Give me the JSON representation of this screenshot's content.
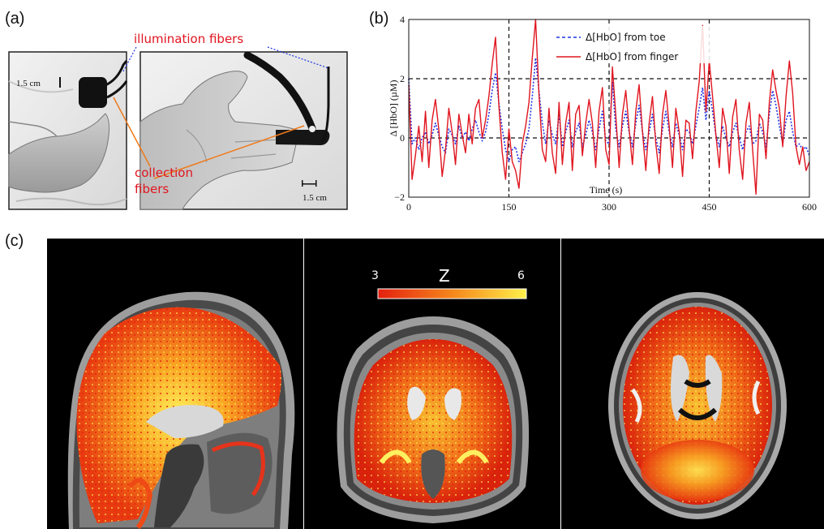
{
  "panels": {
    "a": {
      "label": "(a)"
    },
    "b": {
      "label": "(b)"
    },
    "c": {
      "label": "(c)"
    }
  },
  "photo": {
    "illumination_label": "illumination fibers",
    "collection_label_line1": "collection",
    "collection_label_line2": "fibers",
    "foot_scale": "1.5 cm",
    "hand_scale": "1.5 cm"
  },
  "colorbar": {
    "label": "Z",
    "min_label": "3",
    "max_label": "6",
    "min": 3,
    "max": 6
  },
  "chart_data": {
    "type": "line",
    "xlabel": "Time (s)",
    "ylabel": "Δ [HbO] (µM)",
    "xlim": [
      0,
      600
    ],
    "ylim": [
      -2,
      4
    ],
    "xticks": [
      "0",
      "150",
      "300",
      "450",
      "600"
    ],
    "yticks": [
      "−2",
      "0",
      "2",
      "4"
    ],
    "grid": "dashed lines at x = 150, 300, 450 and y = 0, 2",
    "legend_position": "top-right",
    "series": [
      {
        "name": "Δ[HbO] from toe",
        "color": "#1f35e6",
        "style": "dashed",
        "x": [
          0,
          5,
          10,
          15,
          20,
          25,
          30,
          35,
          40,
          45,
          50,
          55,
          60,
          65,
          70,
          75,
          80,
          85,
          90,
          95,
          100,
          105,
          110,
          115,
          120,
          125,
          130,
          135,
          140,
          145,
          150,
          155,
          160,
          165,
          170,
          175,
          180,
          185,
          190,
          195,
          200,
          205,
          210,
          215,
          220,
          225,
          230,
          235,
          240,
          245,
          250,
          255,
          260,
          265,
          270,
          275,
          280,
          285,
          290,
          295,
          300,
          305,
          310,
          315,
          320,
          325,
          330,
          335,
          340,
          345,
          350,
          355,
          360,
          365,
          370,
          375,
          380,
          385,
          390,
          395,
          400,
          405,
          410,
          415,
          420,
          425,
          430,
          435,
          440,
          445,
          450,
          455,
          460,
          465,
          470,
          475,
          480,
          485,
          490,
          495,
          500,
          505,
          510,
          515,
          520,
          525,
          530,
          535,
          540,
          545,
          550,
          555,
          560,
          565,
          570,
          575,
          580,
          585,
          590,
          595,
          600
        ],
        "y": [
          2.0,
          -0.2,
          0.0,
          -0.4,
          0.0,
          0.2,
          -0.2,
          0.1,
          0.5,
          0.1,
          -0.3,
          -0.5,
          0.3,
          0.1,
          -0.2,
          0.4,
          0.0,
          0.2,
          -0.1,
          0.3,
          0.6,
          0.2,
          -0.1,
          0.2,
          0.8,
          1.6,
          2.2,
          1.2,
          0.3,
          -0.4,
          -0.8,
          -0.4,
          -0.3,
          -0.8,
          -0.5,
          -0.2,
          0.3,
          1.4,
          2.7,
          1.6,
          0.5,
          -0.2,
          0.6,
          0.1,
          -0.2,
          0.8,
          -0.3,
          0.2,
          0.6,
          -0.3,
          0.2,
          0.5,
          -0.3,
          0.1,
          0.6,
          0.2,
          -0.4,
          0.3,
          0.9,
          -0.1,
          -0.2,
          1.9,
          0.3,
          -0.3,
          0.4,
          0.9,
          0.2,
          -0.3,
          0.5,
          1.1,
          0.2,
          -0.4,
          0.2,
          0.8,
          0.0,
          -0.5,
          0.3,
          0.9,
          0.2,
          -0.3,
          0.5,
          0.1,
          -0.4,
          0.3,
          0.2,
          -0.2,
          0.4,
          1.0,
          1.7,
          0.6,
          1.6,
          0.9,
          0.1,
          -0.3,
          0.4,
          0.0,
          -0.3,
          0.2,
          0.5,
          0.0,
          -0.4,
          0.2,
          0.4,
          -0.2,
          -0.1,
          0.5,
          0.2,
          -0.3,
          0.8,
          1.6,
          1.1,
          0.4,
          -0.2,
          0.6,
          0.9,
          0.2,
          -0.3,
          -0.2,
          -0.4,
          -0.3,
          -0.6
        ]
      },
      {
        "name": "Δ[HbO] from finger",
        "color": "#e0151f",
        "style": "solid",
        "x": [
          0,
          5,
          10,
          15,
          20,
          25,
          30,
          35,
          40,
          45,
          50,
          55,
          60,
          65,
          70,
          75,
          80,
          85,
          90,
          95,
          100,
          105,
          110,
          115,
          120,
          125,
          130,
          135,
          140,
          145,
          150,
          155,
          160,
          165,
          170,
          175,
          180,
          185,
          190,
          195,
          200,
          205,
          210,
          215,
          220,
          225,
          230,
          235,
          240,
          245,
          250,
          255,
          260,
          265,
          270,
          275,
          280,
          285,
          290,
          295,
          300,
          305,
          310,
          315,
          320,
          325,
          330,
          335,
          340,
          345,
          350,
          355,
          360,
          365,
          370,
          375,
          380,
          385,
          390,
          395,
          400,
          405,
          410,
          415,
          420,
          425,
          430,
          435,
          440,
          445,
          450,
          455,
          460,
          465,
          470,
          475,
          480,
          485,
          490,
          495,
          500,
          505,
          510,
          515,
          520,
          525,
          530,
          535,
          540,
          545,
          550,
          555,
          560,
          565,
          570,
          575,
          580,
          585,
          590,
          595,
          600
        ],
        "y": [
          1.8,
          -1.4,
          -0.6,
          0.4,
          -0.8,
          0.9,
          -1.0,
          0.6,
          1.3,
          0.3,
          -1.3,
          -0.4,
          1.0,
          0.2,
          -0.9,
          0.8,
          0.1,
          -0.5,
          0.8,
          -0.2,
          1.0,
          1.3,
          0.0,
          0.6,
          1.4,
          2.5,
          3.4,
          1.1,
          -0.5,
          -1.4,
          0.3,
          -0.8,
          -1.1,
          -1.7,
          -0.2,
          0.4,
          1.2,
          2.7,
          4.0,
          1.5,
          -0.4,
          -0.8,
          1.0,
          -0.5,
          -1.2,
          1.2,
          -0.9,
          0.5,
          1.2,
          -1.1,
          0.8,
          1.1,
          -0.6,
          0.5,
          1.3,
          0.5,
          -1.0,
          0.9,
          1.7,
          -0.4,
          -0.9,
          2.4,
          0.8,
          -1.0,
          0.8,
          1.6,
          0.3,
          -0.9,
          0.9,
          1.8,
          0.2,
          -1.1,
          0.5,
          1.4,
          -0.2,
          -1.2,
          0.8,
          1.6,
          0.4,
          -1.0,
          1.0,
          0.2,
          -1.3,
          0.6,
          0.5,
          -0.7,
          0.9,
          1.9,
          3.8,
          0.9,
          2.6,
          1.4,
          0.1,
          -1.0,
          1.0,
          0.4,
          -1.2,
          0.7,
          1.3,
          -0.4,
          -1.4,
          0.5,
          1.2,
          -0.4,
          -1.9,
          0.8,
          0.6,
          -0.7,
          1.2,
          2.3,
          1.6,
          1.0,
          -0.3,
          1.4,
          2.6,
          1.5,
          -0.3,
          -0.9,
          -0.3,
          -1.1,
          -0.8
        ]
      }
    ]
  }
}
